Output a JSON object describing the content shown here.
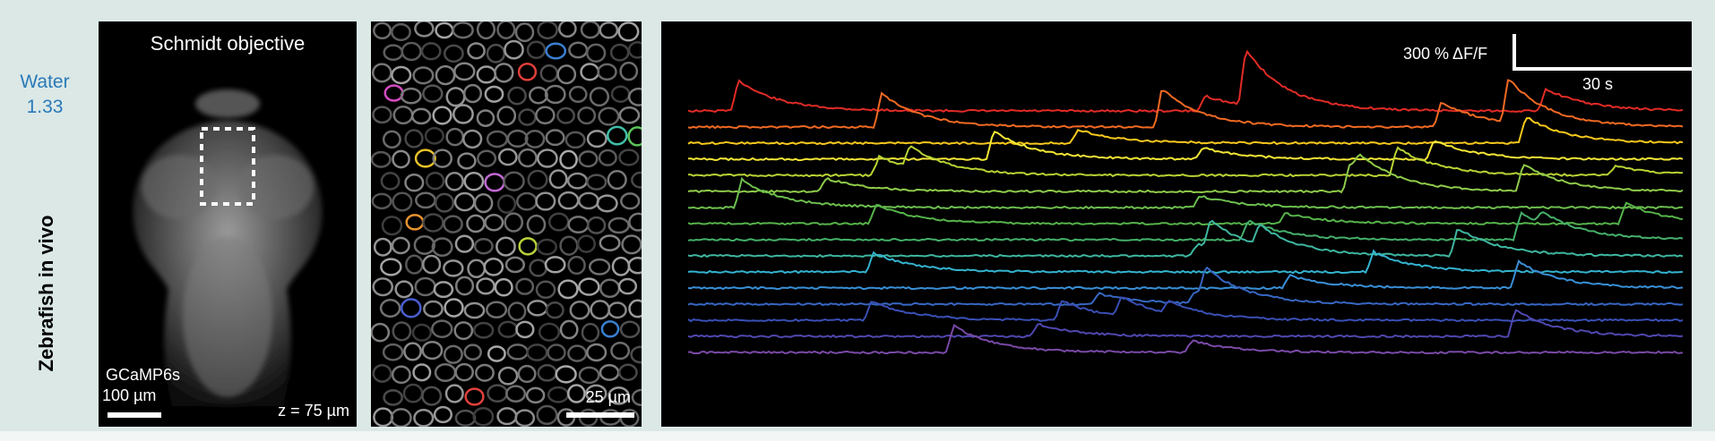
{
  "medium": {
    "label": "Water",
    "refractive_index": "1.33"
  },
  "sample_label": "Zebrafish in vivo",
  "panel_brain": {
    "title": "Schmidt objective",
    "indicator": "GCaMP6s",
    "scale_label": "100 µm",
    "depth_label": "z = 75 µm"
  },
  "panel_cells": {
    "scale_label": "25 µm"
  },
  "panel_traces": {
    "scale_y_label": "300 % ΔF/F",
    "scale_x_label": "30 s",
    "trace_colors": [
      "#e12b26",
      "#f26a23",
      "#f7c81d",
      "#f4e637",
      "#b8d334",
      "#8fcb4a",
      "#6dbf4f",
      "#56b34a",
      "#45b06a",
      "#3fb6a0",
      "#34b3cf",
      "#3a8fd6",
      "#3767c2",
      "#3a4fb5",
      "#5048b0",
      "#7a4aa8"
    ]
  },
  "colors": {
    "frame": "#dbe8e6",
    "accent": "#2a7ab8"
  }
}
